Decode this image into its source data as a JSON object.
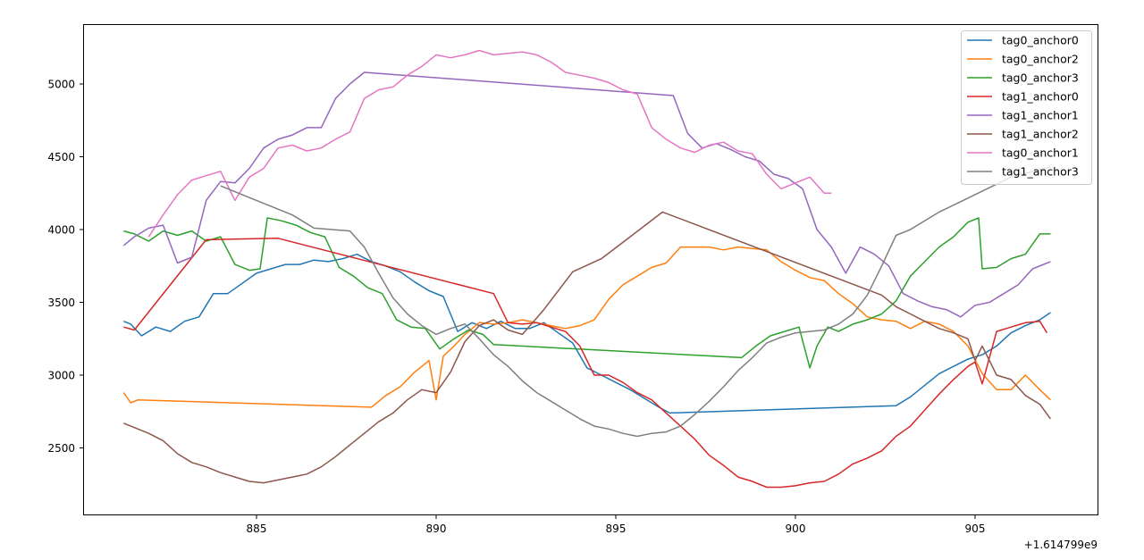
{
  "chart_data": {
    "type": "line",
    "title": "",
    "xlabel": "",
    "ylabel": "",
    "x_offset_label": "+1.614799e9",
    "xlim": [
      880.2,
      908.5
    ],
    "ylim": [
      2100,
      5400
    ],
    "grid": false,
    "legend_position": "upper right",
    "xticks": [
      885,
      890,
      895,
      900,
      905
    ],
    "yticks": [
      2500,
      3000,
      3500,
      4000,
      4500,
      5000
    ],
    "series": [
      {
        "name": "tag0_anchor0",
        "color": "#1f77b4",
        "x": [
          881.3,
          881.5,
          881.8,
          882.2,
          882.6,
          883.0,
          883.4,
          883.8,
          884.2,
          884.6,
          885.0,
          885.4,
          885.8,
          886.2,
          886.6,
          887.0,
          887.4,
          887.8,
          888.2,
          888.6,
          889.0,
          889.4,
          889.8,
          890.2,
          890.6,
          891.0,
          891.4,
          891.8,
          892.2,
          892.6,
          893.0,
          893.4,
          893.8,
          894.2,
          894.6,
          895.0,
          895.4,
          895.8,
          896.2,
          896.5,
          902.8,
          903.2,
          903.6,
          904.0,
          904.4,
          904.8,
          905.2,
          905.6,
          906.0,
          906.4,
          906.8,
          907.1
        ],
        "y": [
          3370,
          3350,
          3270,
          3330,
          3300,
          3370,
          3400,
          3560,
          3560,
          3630,
          3700,
          3730,
          3760,
          3760,
          3790,
          3780,
          3800,
          3830,
          3780,
          3750,
          3710,
          3640,
          3580,
          3540,
          3300,
          3360,
          3320,
          3370,
          3320,
          3320,
          3360,
          3290,
          3220,
          3050,
          3000,
          2950,
          2900,
          2840,
          2780,
          2740,
          2790,
          2850,
          2930,
          3010,
          3060,
          3110,
          3140,
          3200,
          3290,
          3340,
          3380,
          3430
        ]
      },
      {
        "name": "tag0_anchor2",
        "color": "#ff7f0e",
        "x": [
          881.3,
          881.5,
          881.7,
          888.2,
          888.6,
          889.0,
          889.4,
          889.8,
          890.0,
          890.2,
          890.5,
          890.8,
          891.2,
          891.6,
          892.0,
          892.4,
          892.8,
          893.2,
          893.6,
          894.0,
          894.4,
          894.8,
          895.2,
          895.6,
          896.0,
          896.4,
          896.8,
          897.2,
          897.6,
          898.0,
          898.4,
          898.8,
          899.2,
          899.6,
          900.0,
          900.4,
          900.8,
          901.2,
          901.6,
          902.0,
          902.4,
          902.8,
          903.2,
          903.6,
          904.0,
          904.4,
          904.8,
          905.2,
          905.6,
          906.0,
          906.4,
          906.8,
          907.1
        ],
        "y": [
          2880,
          2810,
          2830,
          2780,
          2860,
          2920,
          3020,
          3100,
          2830,
          3130,
          3200,
          3280,
          3360,
          3350,
          3360,
          3380,
          3360,
          3340,
          3320,
          3340,
          3380,
          3520,
          3620,
          3680,
          3740,
          3770,
          3880,
          3880,
          3880,
          3860,
          3880,
          3870,
          3860,
          3780,
          3720,
          3670,
          3650,
          3560,
          3490,
          3400,
          3380,
          3370,
          3320,
          3370,
          3350,
          3300,
          3200,
          3010,
          2900,
          2900,
          3000,
          2900,
          2830
        ]
      },
      {
        "name": "tag0_anchor3",
        "color": "#2ca02c",
        "x": [
          881.3,
          881.6,
          882.0,
          882.4,
          882.8,
          883.2,
          883.6,
          884.0,
          884.4,
          884.8,
          885.1,
          885.3,
          885.7,
          886.1,
          886.5,
          886.9,
          887.3,
          887.7,
          888.1,
          888.5,
          888.9,
          889.3,
          889.7,
          890.1,
          890.5,
          890.9,
          891.3,
          891.6,
          898.5,
          898.9,
          899.3,
          899.7,
          900.1,
          900.4,
          900.6,
          900.9,
          901.2,
          901.6,
          902.0,
          902.4,
          902.8,
          903.2,
          903.6,
          904.0,
          904.4,
          904.8,
          905.1,
          905.2,
          905.6,
          906.0,
          906.4,
          906.8,
          907.1
        ],
        "y": [
          3990,
          3970,
          3920,
          3990,
          3960,
          3990,
          3920,
          3950,
          3760,
          3720,
          3730,
          4080,
          4060,
          4030,
          3980,
          3950,
          3740,
          3680,
          3600,
          3560,
          3380,
          3330,
          3320,
          3180,
          3250,
          3310,
          3280,
          3210,
          3120,
          3200,
          3270,
          3300,
          3330,
          3050,
          3200,
          3330,
          3300,
          3350,
          3380,
          3420,
          3510,
          3680,
          3780,
          3880,
          3950,
          4050,
          4080,
          3730,
          3740,
          3800,
          3830,
          3970,
          3970
        ]
      },
      {
        "name": "tag1_anchor0",
        "color": "#d62728",
        "x": [
          881.3,
          881.6,
          883.6,
          885.6,
          891.6,
          892.0,
          892.4,
          892.8,
          893.2,
          893.6,
          894.0,
          894.4,
          894.8,
          895.2,
          895.6,
          896.0,
          896.4,
          896.8,
          897.2,
          897.6,
          898.0,
          898.4,
          898.8,
          899.2,
          899.6,
          900.0,
          900.4,
          900.8,
          901.2,
          901.6,
          902.0,
          902.4,
          902.8,
          903.2,
          903.6,
          904.0,
          904.4,
          904.8,
          905.0,
          905.2,
          905.6,
          906.0,
          906.4,
          906.8,
          907.0
        ],
        "y": [
          3330,
          3310,
          3930,
          3940,
          3560,
          3360,
          3350,
          3360,
          3330,
          3300,
          3200,
          3000,
          3000,
          2950,
          2880,
          2830,
          2740,
          2650,
          2560,
          2450,
          2380,
          2300,
          2270,
          2230,
          2230,
          2240,
          2260,
          2270,
          2320,
          2390,
          2430,
          2480,
          2580,
          2650,
          2760,
          2870,
          2970,
          3060,
          3090,
          2940,
          3300,
          3330,
          3360,
          3370,
          3290
        ]
      },
      {
        "name": "tag1_anchor1",
        "color": "#9467bd",
        "x": [
          881.3,
          881.6,
          882.0,
          882.4,
          882.8,
          883.2,
          883.6,
          884.0,
          884.4,
          884.8,
          885.2,
          885.6,
          886.0,
          886.4,
          886.8,
          887.2,
          887.6,
          888.0,
          896.6,
          897.0,
          897.4,
          897.8,
          898.2,
          898.6,
          899.0,
          899.4,
          899.8,
          900.2,
          900.6,
          901.0,
          901.4,
          901.8,
          902.2,
          902.6,
          903.0,
          903.4,
          903.8,
          904.2,
          904.6,
          905.0,
          905.4,
          905.8,
          906.2,
          906.6,
          907.1
        ],
        "y": [
          3890,
          3950,
          4010,
          4030,
          3770,
          3810,
          4200,
          4330,
          4320,
          4420,
          4560,
          4620,
          4650,
          4700,
          4700,
          4900,
          5000,
          5080,
          4920,
          4660,
          4560,
          4590,
          4550,
          4500,
          4470,
          4380,
          4350,
          4280,
          4000,
          3880,
          3700,
          3880,
          3830,
          3750,
          3560,
          3510,
          3470,
          3450,
          3400,
          3480,
          3500,
          3560,
          3620,
          3730,
          3780
        ]
      },
      {
        "name": "tag1_anchor2",
        "color": "#8c564b",
        "x": [
          881.3,
          881.6,
          882.0,
          882.4,
          882.8,
          883.2,
          883.6,
          884.0,
          884.4,
          884.8,
          885.2,
          885.6,
          886.0,
          886.4,
          886.8,
          887.2,
          887.6,
          888.0,
          888.4,
          888.8,
          889.2,
          889.6,
          890.0,
          890.4,
          890.8,
          891.2,
          891.6,
          892.0,
          892.4,
          893.0,
          893.8,
          894.6,
          895.4,
          896.3,
          902.4,
          902.8,
          903.2,
          903.6,
          904.0,
          904.4,
          904.8,
          905.0,
          905.2,
          905.6,
          906.0,
          906.4,
          906.8,
          907.1
        ],
        "y": [
          2670,
          2640,
          2600,
          2550,
          2460,
          2400,
          2370,
          2330,
          2300,
          2270,
          2260,
          2280,
          2300,
          2320,
          2370,
          2440,
          2520,
          2600,
          2680,
          2740,
          2830,
          2900,
          2880,
          3020,
          3230,
          3340,
          3380,
          3310,
          3280,
          3450,
          3710,
          3800,
          3950,
          4120,
          3550,
          3470,
          3420,
          3370,
          3320,
          3290,
          3250,
          3100,
          3200,
          3000,
          2970,
          2860,
          2800,
          2700
        ]
      },
      {
        "name": "tag0_anchor1",
        "color": "#e377c2",
        "x": [
          882.0,
          882.4,
          882.8,
          883.2,
          883.6,
          884.0,
          884.4,
          884.8,
          885.2,
          885.6,
          886.0,
          886.4,
          886.8,
          887.2,
          887.6,
          888.0,
          888.4,
          888.8,
          889.2,
          889.6,
          890.0,
          890.4,
          890.8,
          891.2,
          891.6,
          892.0,
          892.4,
          892.8,
          893.2,
          893.6,
          894.0,
          894.4,
          894.8,
          895.2,
          895.6,
          896.0,
          896.4,
          896.8,
          897.2,
          897.6,
          898.0,
          898.4,
          898.8,
          899.2,
          899.6,
          900.0,
          900.4,
          900.8,
          901.0
        ],
        "y": [
          3950,
          4100,
          4240,
          4340,
          4370,
          4400,
          4200,
          4360,
          4420,
          4560,
          4580,
          4540,
          4560,
          4620,
          4670,
          4900,
          4960,
          4980,
          5060,
          5120,
          5200,
          5180,
          5200,
          5230,
          5200,
          5210,
          5220,
          5200,
          5150,
          5080,
          5060,
          5040,
          5010,
          4960,
          4930,
          4700,
          4620,
          4560,
          4530,
          4580,
          4600,
          4540,
          4520,
          4380,
          4280,
          4320,
          4360,
          4250,
          4250
        ]
      },
      {
        "name": "tag1_anchor3",
        "color": "#7f7f7f",
        "x": [
          884.0,
          885.0,
          886.0,
          886.6,
          887.6,
          888.0,
          888.4,
          888.8,
          889.2,
          889.6,
          890.0,
          890.4,
          890.8,
          891.2,
          891.6,
          892.0,
          892.4,
          892.8,
          893.2,
          893.6,
          894.0,
          894.4,
          894.8,
          895.2,
          895.6,
          896.0,
          896.4,
          896.8,
          897.2,
          897.6,
          898.0,
          898.4,
          898.8,
          899.2,
          899.6,
          900.0,
          900.4,
          900.8,
          901.2,
          901.6,
          902.0,
          902.4,
          902.8,
          903.2,
          904.0,
          905.0,
          906.0,
          907.1
        ],
        "y": [
          4300,
          4200,
          4100,
          4010,
          3990,
          3880,
          3700,
          3530,
          3420,
          3340,
          3280,
          3320,
          3350,
          3250,
          3140,
          3060,
          2960,
          2880,
          2820,
          2760,
          2700,
          2650,
          2630,
          2600,
          2580,
          2600,
          2610,
          2650,
          2730,
          2820,
          2920,
          3030,
          3120,
          3220,
          3260,
          3290,
          3300,
          3310,
          3350,
          3420,
          3550,
          3750,
          3960,
          4000,
          4120,
          4240,
          4360,
          4430
        ]
      }
    ]
  },
  "axes": {
    "x_offset_label": "+1.614799e9",
    "xtick_labels": [
      "885",
      "890",
      "895",
      "900",
      "905"
    ],
    "ytick_labels": [
      "2500",
      "3000",
      "3500",
      "4000",
      "4500",
      "5000"
    ]
  },
  "legend": {
    "items": [
      {
        "label": "tag0_anchor0",
        "color": "#1f77b4"
      },
      {
        "label": "tag0_anchor2",
        "color": "#ff7f0e"
      },
      {
        "label": "tag0_anchor3",
        "color": "#2ca02c"
      },
      {
        "label": "tag1_anchor0",
        "color": "#d62728"
      },
      {
        "label": "tag1_anchor1",
        "color": "#9467bd"
      },
      {
        "label": "tag1_anchor2",
        "color": "#8c564b"
      },
      {
        "label": "tag0_anchor1",
        "color": "#e377c2"
      },
      {
        "label": "tag1_anchor3",
        "color": "#7f7f7f"
      }
    ]
  }
}
